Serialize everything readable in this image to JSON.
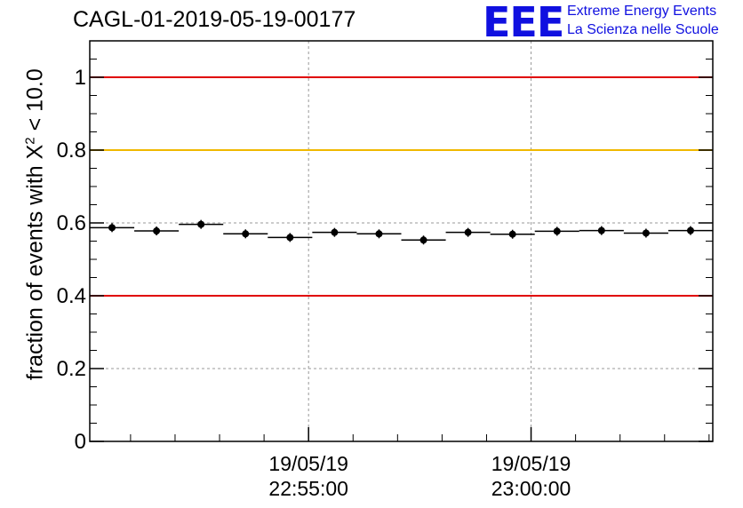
{
  "header": {
    "title": "CAGL-01-2019-05-19-00177"
  },
  "logo": {
    "mark": "EEE",
    "line1": "Extreme Energy Events",
    "line2": "La Scienza nelle Scuole",
    "color": "#1010e0"
  },
  "axis": {
    "ylabel_prefix": "fraction of events with X",
    "ylabel_sup": "2",
    "ylabel_suffix": " < 10.0"
  },
  "chart_data": {
    "type": "scatter",
    "title": "CAGL-01-2019-05-19-00177",
    "ylabel": "fraction of events with X² < 10.0",
    "xlabel": "",
    "xlim": [
      "22:50:05",
      "23:04:05"
    ],
    "ylim": [
      0,
      1.1
    ],
    "grid": true,
    "y_ticks": [
      {
        "value": 0,
        "label": "0"
      },
      {
        "value": 0.2,
        "label": "0.2"
      },
      {
        "value": 0.4,
        "label": "0.4"
      },
      {
        "value": 0.6,
        "label": "0.6"
      },
      {
        "value": 0.8,
        "label": "0.8"
      },
      {
        "value": 1,
        "label": "1"
      }
    ],
    "x_ticks": [
      {
        "time": "22:55:00",
        "label_date": "19/05/19",
        "label_time": "22:55:00"
      },
      {
        "time": "23:00:00",
        "label_date": "19/05/19",
        "label_time": "23:00:00"
      }
    ],
    "reference_lines": [
      {
        "y": 1.0,
        "color": "#e00000"
      },
      {
        "y": 0.8,
        "color": "#f0b800"
      },
      {
        "y": 0.4,
        "color": "#e00000"
      }
    ],
    "series": [
      {
        "marker_color": "#000000",
        "bin_width_minutes": 1,
        "x": [
          "22:50:35",
          "22:51:35",
          "22:52:35",
          "22:53:35",
          "22:54:35",
          "22:55:35",
          "22:56:35",
          "22:57:35",
          "22:58:35",
          "22:59:35",
          "23:00:35",
          "23:01:35",
          "23:02:35",
          "23:03:35"
        ],
        "y": [
          0.587,
          0.578,
          0.596,
          0.57,
          0.56,
          0.574,
          0.57,
          0.553,
          0.574,
          0.569,
          0.577,
          0.579,
          0.572,
          0.579
        ]
      }
    ]
  }
}
